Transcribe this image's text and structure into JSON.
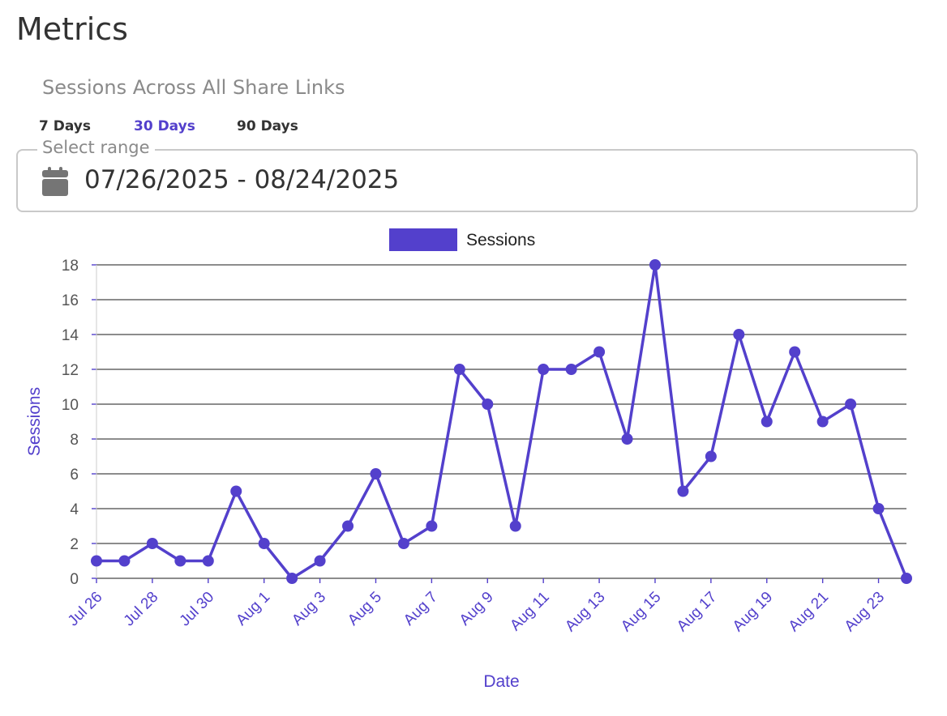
{
  "header": {
    "title": "Metrics",
    "subtitle": "Sessions Across All Share Links"
  },
  "range_tabs": [
    {
      "label": "7 Days",
      "active": false
    },
    {
      "label": "30 Days",
      "active": true
    },
    {
      "label": "90 Days",
      "active": false
    }
  ],
  "date_range": {
    "legend": "Select range",
    "value": "07/26/2025 - 08/24/2025",
    "icon": "calendar-icon"
  },
  "colors": {
    "accent": "#5340cc",
    "grid": "#666666",
    "text": "#333333",
    "muted": "#8a8a8a"
  },
  "chart_data": {
    "type": "line",
    "title": "",
    "xlabel": "Date",
    "ylabel": "Sessions",
    "legend_position": "top-center",
    "grid": true,
    "ylim": [
      0,
      18
    ],
    "yticks": [
      0,
      2,
      4,
      6,
      8,
      10,
      12,
      14,
      16,
      18
    ],
    "x": [
      "Jul 26",
      "Jul 27",
      "Jul 28",
      "Jul 29",
      "Jul 30",
      "Jul 31",
      "Aug 1",
      "Aug 2",
      "Aug 3",
      "Aug 4",
      "Aug 5",
      "Aug 6",
      "Aug 7",
      "Aug 8",
      "Aug 9",
      "Aug 10",
      "Aug 11",
      "Aug 12",
      "Aug 13",
      "Aug 14",
      "Aug 15",
      "Aug 16",
      "Aug 17",
      "Aug 18",
      "Aug 19",
      "Aug 20",
      "Aug 21",
      "Aug 22",
      "Aug 23",
      "Aug 24"
    ],
    "xtick_labels": [
      "Jul 26",
      "Jul 28",
      "Jul 30",
      "Aug 1",
      "Aug 3",
      "Aug 5",
      "Aug 7",
      "Aug 9",
      "Aug 11",
      "Aug 13",
      "Aug 15",
      "Aug 17",
      "Aug 19",
      "Aug 21",
      "Aug 23"
    ],
    "series": [
      {
        "name": "Sessions",
        "color": "#5340cc",
        "values": [
          1,
          1,
          2,
          1,
          1,
          5,
          2,
          0,
          1,
          3,
          6,
          2,
          3,
          12,
          10,
          3,
          12,
          12,
          13,
          8,
          18,
          5,
          7,
          14,
          9,
          13,
          9,
          10,
          4,
          0
        ]
      }
    ]
  }
}
